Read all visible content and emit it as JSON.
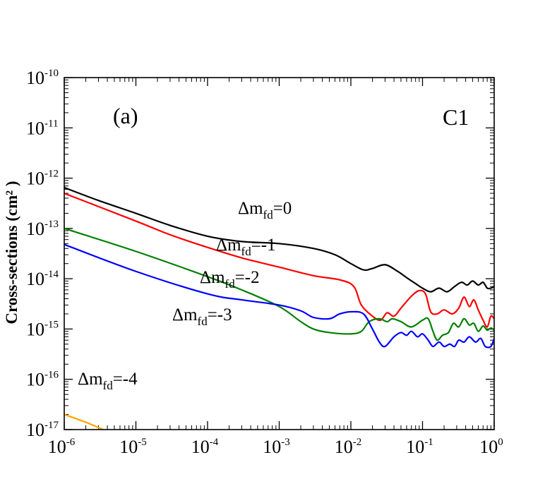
{
  "chart_data": {
    "type": "line",
    "title": "",
    "xlabel": "",
    "ylabel": "Cross-sections (cm² )",
    "xscale": "log",
    "yscale": "log",
    "xlim": [
      1e-06,
      1
    ],
    "ylim": [
      1e-17,
      1e-10
    ],
    "x_ticks": [
      {
        "base": "10",
        "exp": "-6"
      },
      {
        "base": "10",
        "exp": "-5"
      },
      {
        "base": "10",
        "exp": "-4"
      },
      {
        "base": "10",
        "exp": "-3"
      },
      {
        "base": "10",
        "exp": "-2"
      },
      {
        "base": "10",
        "exp": "-1"
      },
      {
        "base": "10",
        "exp": "0"
      }
    ],
    "y_ticks": [
      {
        "base": "10",
        "exp": "-17"
      },
      {
        "base": "10",
        "exp": "-16"
      },
      {
        "base": "10",
        "exp": "-15"
      },
      {
        "base": "10",
        "exp": "-14"
      },
      {
        "base": "10",
        "exp": "-13"
      },
      {
        "base": "10",
        "exp": "-12"
      },
      {
        "base": "10",
        "exp": "-11"
      },
      {
        "base": "10",
        "exp": "-10"
      }
    ],
    "panel_label": "(a)",
    "case_label": "C1",
    "series": [
      {
        "name": "Δm_fd=0",
        "color": "#000000",
        "label": {
          "prefix": "Δm",
          "sub": "fd",
          "suffix": "=0"
        },
        "points": [
          [
            1e-06,
            6.5e-13
          ],
          [
            3e-06,
            3.6e-13
          ],
          [
            1e-05,
            2e-13
          ],
          [
            3e-05,
            1.15e-13
          ],
          [
            0.0001,
            7e-14
          ],
          [
            0.0003,
            5.5e-14
          ],
          [
            0.001,
            5e-14
          ],
          [
            0.003,
            4e-14
          ],
          [
            0.006,
            3e-14
          ],
          [
            0.01,
            2e-14
          ],
          [
            0.015,
            1.5e-14
          ],
          [
            0.02,
            1.6e-14
          ],
          [
            0.03,
            1.9e-14
          ],
          [
            0.045,
            1.4e-14
          ],
          [
            0.06,
            1.05e-14
          ],
          [
            0.08,
            8e-15
          ],
          [
            0.1,
            6.5e-15
          ],
          [
            0.13,
            5.5e-15
          ],
          [
            0.17,
            6.5e-15
          ],
          [
            0.22,
            5.5e-15
          ],
          [
            0.28,
            7e-15
          ],
          [
            0.35,
            8.5e-15
          ],
          [
            0.42,
            7.5e-15
          ],
          [
            0.5,
            9e-15
          ],
          [
            0.6,
            7.5e-15
          ],
          [
            0.7,
            8.5e-15
          ],
          [
            0.8,
            6.5e-15
          ],
          [
            0.9,
            6.5e-15
          ],
          [
            1,
            7e-15
          ]
        ]
      },
      {
        "name": "Δm_fd=-1",
        "color": "#ff0000",
        "label": {
          "prefix": "Δm",
          "sub": "fd",
          "suffix": "=-1"
        },
        "points": [
          [
            1e-06,
            5e-13
          ],
          [
            1e-05,
            1.4e-13
          ],
          [
            3e-05,
            7.5e-14
          ],
          [
            0.0001,
            4.2e-14
          ],
          [
            0.0003,
            2.6e-14
          ],
          [
            0.001,
            1.7e-14
          ],
          [
            0.003,
            1.15e-14
          ],
          [
            0.007,
            9.5e-15
          ],
          [
            0.011,
            7e-15
          ],
          [
            0.014,
            3e-15
          ],
          [
            0.02,
            1.8e-15
          ],
          [
            0.026,
            1.5e-15
          ],
          [
            0.032,
            2.1e-15
          ],
          [
            0.04,
            1.8e-15
          ],
          [
            0.05,
            2.6e-15
          ],
          [
            0.07,
            4.5e-15
          ],
          [
            0.09,
            5.8e-15
          ],
          [
            0.11,
            5e-15
          ],
          [
            0.13,
            2.2e-15
          ],
          [
            0.16,
            2e-15
          ],
          [
            0.2,
            2.4e-15
          ],
          [
            0.26,
            2e-15
          ],
          [
            0.32,
            2.6e-15
          ],
          [
            0.38,
            4.3e-15
          ],
          [
            0.45,
            2.8e-15
          ],
          [
            0.52,
            3.8e-15
          ],
          [
            0.6,
            2.4e-15
          ],
          [
            0.7,
            1.5e-15
          ],
          [
            0.8,
            1.1e-15
          ],
          [
            0.9,
            1.8e-15
          ],
          [
            1,
            1.6e-15
          ]
        ]
      },
      {
        "name": "Δm_fd=-2",
        "color": "#008000",
        "label": {
          "prefix": "Δm",
          "sub": "fd",
          "suffix": "=-2"
        },
        "points": [
          [
            1e-06,
            1e-13
          ],
          [
            1e-05,
            3.5e-14
          ],
          [
            0.0001,
            1.1e-14
          ],
          [
            0.0003,
            6e-15
          ],
          [
            0.001,
            2.8e-15
          ],
          [
            0.002,
            1.4e-15
          ],
          [
            0.003,
            1e-15
          ],
          [
            0.005,
            8.5e-16
          ],
          [
            0.01,
            8e-16
          ],
          [
            0.014,
            9e-16
          ],
          [
            0.018,
            1.4e-15
          ],
          [
            0.025,
            1.6e-15
          ],
          [
            0.032,
            1.4e-15
          ],
          [
            0.038,
            1.6e-15
          ],
          [
            0.05,
            1.4e-15
          ],
          [
            0.07,
            1.1e-15
          ],
          [
            0.1,
            1.5e-15
          ],
          [
            0.12,
            1.6e-15
          ],
          [
            0.14,
            9e-16
          ],
          [
            0.16,
            6e-16
          ],
          [
            0.19,
            7.5e-16
          ],
          [
            0.23,
            8.5e-16
          ],
          [
            0.27,
            1.3e-15
          ],
          [
            0.32,
            1.1e-15
          ],
          [
            0.38,
            1.6e-15
          ],
          [
            0.45,
            1.2e-15
          ],
          [
            0.52,
            1.3e-15
          ],
          [
            0.6,
            9e-16
          ],
          [
            0.7,
            1.15e-15
          ],
          [
            0.8,
            9.5e-16
          ],
          [
            0.9,
            1.05e-15
          ],
          [
            1,
            9.5e-16
          ]
        ]
      },
      {
        "name": "Δm_fd=-3",
        "color": "#0000ff",
        "label": {
          "prefix": "Δm",
          "sub": "fd",
          "suffix": "=-3"
        },
        "points": [
          [
            1e-06,
            4.8e-14
          ],
          [
            1e-05,
            1.4e-14
          ],
          [
            0.0001,
            5e-15
          ],
          [
            0.0003,
            3.8e-15
          ],
          [
            0.001,
            3e-15
          ],
          [
            0.002,
            2.3e-15
          ],
          [
            0.003,
            1.7e-15
          ],
          [
            0.005,
            1.6e-15
          ],
          [
            0.007,
            2e-15
          ],
          [
            0.01,
            2.2e-15
          ],
          [
            0.015,
            2e-15
          ],
          [
            0.02,
            1e-15
          ],
          [
            0.025,
            5.5e-16
          ],
          [
            0.03,
            4.5e-16
          ],
          [
            0.04,
            7e-16
          ],
          [
            0.05,
            8.5e-16
          ],
          [
            0.06,
            7.5e-16
          ],
          [
            0.07,
            9e-16
          ],
          [
            0.085,
            7e-16
          ],
          [
            0.1,
            8e-16
          ],
          [
            0.12,
            6e-16
          ],
          [
            0.14,
            4.5e-16
          ],
          [
            0.17,
            5.5e-16
          ],
          [
            0.2,
            4.5e-16
          ],
          [
            0.24,
            5e-16
          ],
          [
            0.28,
            4.5e-16
          ],
          [
            0.32,
            6e-16
          ],
          [
            0.38,
            5.5e-16
          ],
          [
            0.45,
            7e-16
          ],
          [
            0.55,
            5.5e-16
          ],
          [
            0.65,
            6.5e-16
          ],
          [
            0.75,
            4.5e-16
          ],
          [
            0.9,
            4.5e-16
          ],
          [
            1,
            6.5e-16
          ]
        ]
      },
      {
        "name": "Δm_fd=-4",
        "color": "#ffa500",
        "label": {
          "prefix": "Δm",
          "sub": "fd",
          "suffix": "=-4"
        },
        "points": [
          [
            1e-06,
            2e-17
          ],
          [
            2e-06,
            1.4e-17
          ],
          [
            3.5e-06,
            1e-17
          ]
        ]
      }
    ]
  }
}
